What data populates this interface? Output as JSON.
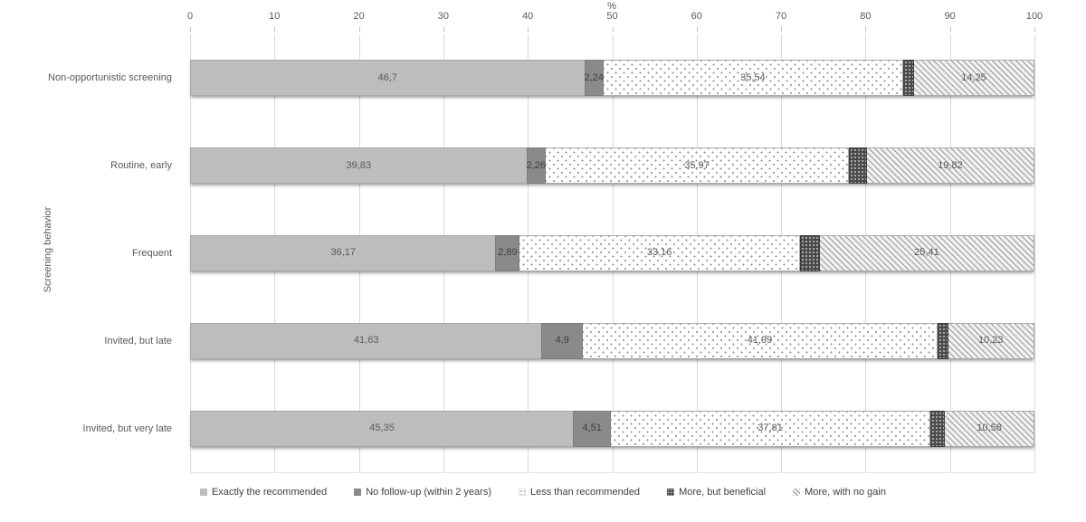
{
  "chart_data": {
    "type": "bar",
    "orientation": "horizontal",
    "stacked": true,
    "xlabel": "%",
    "ylabel": "Screening behavior",
    "xlim": [
      0,
      100
    ],
    "xticks": [
      0,
      10,
      20,
      30,
      40,
      50,
      60,
      70,
      80,
      90,
      100
    ],
    "grid": true,
    "legend_position": "bottom",
    "categories": [
      "Non-opportunistic screening",
      "Routine, early",
      "Frequent",
      "Invited, but late",
      "Invited, but very late"
    ],
    "series": [
      {
        "name": "Exactly the recommended",
        "values": [
          46.7,
          39.83,
          36.17,
          41.63,
          45.35
        ],
        "labels": [
          "46,7",
          "39,83",
          "36,17",
          "41,63",
          "45,35"
        ]
      },
      {
        "name": "No follow-up (within 2 years)",
        "values": [
          2.24,
          2.26,
          2.89,
          4.9,
          4.51
        ],
        "labels": [
          "2,24",
          "2,26",
          "2,89",
          "4,9",
          "4,51"
        ]
      },
      {
        "name": "Less than recommended",
        "values": [
          35.54,
          35.97,
          33.16,
          41.99,
          37.81
        ],
        "labels": [
          "35,54",
          "35,97",
          "33,16",
          "41,99",
          "37,81"
        ]
      },
      {
        "name": "More, but beneficial",
        "values": [
          1.27,
          2.12,
          2.37,
          1.25,
          1.75
        ],
        "labels": [
          null,
          null,
          null,
          null,
          null
        ]
      },
      {
        "name": "More, with no gain",
        "values": [
          14.25,
          19.82,
          25.41,
          10.23,
          10.58
        ],
        "labels": [
          "14,25",
          "19,82",
          "25,41",
          "10,23",
          "10,58"
        ]
      }
    ]
  },
  "colors": {
    "exactly_recommended": "#bdbdbd",
    "no_follow_up": "#8a8a8a",
    "less_than_recommended_dot": "#8c8c8c",
    "more_beneficial": "#4a4a4a",
    "more_no_gain_hatch": "#9a9a9a",
    "gridline": "#d9d9d9",
    "text": "#595959"
  }
}
